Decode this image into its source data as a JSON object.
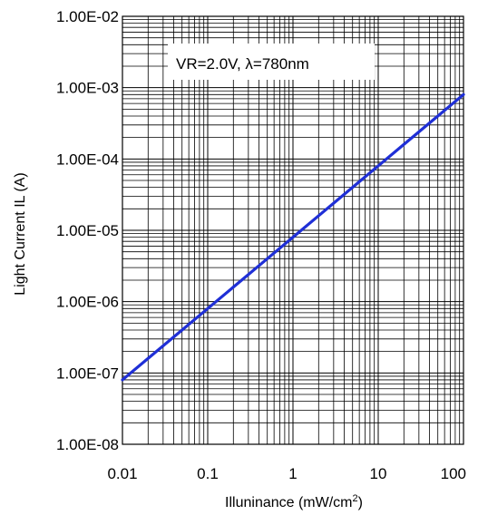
{
  "chart_data": {
    "type": "line",
    "xscale": "log",
    "yscale": "log",
    "xlim": [
      0.01,
      100
    ],
    "ylim": [
      1e-08,
      0.01
    ],
    "x_ticks": [
      {
        "value": 0.01,
        "label": "0.01"
      },
      {
        "value": 0.1,
        "label": "0.1"
      },
      {
        "value": 1,
        "label": "1"
      },
      {
        "value": 10,
        "label": "10"
      },
      {
        "value": 100,
        "label": "100"
      }
    ],
    "y_ticks": [
      {
        "value": 1e-08,
        "label": "1.00E-08"
      },
      {
        "value": 1e-07,
        "label": "1.00E-07"
      },
      {
        "value": 1e-06,
        "label": "1.00E-06"
      },
      {
        "value": 1e-05,
        "label": "1.00E-05"
      },
      {
        "value": 0.0001,
        "label": "1.00E-04"
      },
      {
        "value": 0.001,
        "label": "1.00E-03"
      },
      {
        "value": 0.01,
        "label": "1.00E-02"
      }
    ],
    "xlabel": "Illuninance (mW/cm",
    "xlabel_superscript": "2",
    "xlabel_suffix": ")",
    "ylabel": "Light Current IL (A)",
    "annotation": "VR=2.0V, λ=780nm",
    "grid": true,
    "series": [
      {
        "color": "#1f2fd6",
        "x": [
          0.01,
          0.02,
          0.05,
          0.1,
          0.2,
          0.5,
          1,
          2,
          5,
          10,
          20,
          50,
          100
        ],
        "y": [
          8e-08,
          1.6e-07,
          4e-07,
          8e-07,
          1.6e-06,
          4e-06,
          8e-06,
          1.6e-05,
          4e-05,
          8e-05,
          0.00016,
          0.0004,
          0.0008
        ]
      }
    ]
  }
}
